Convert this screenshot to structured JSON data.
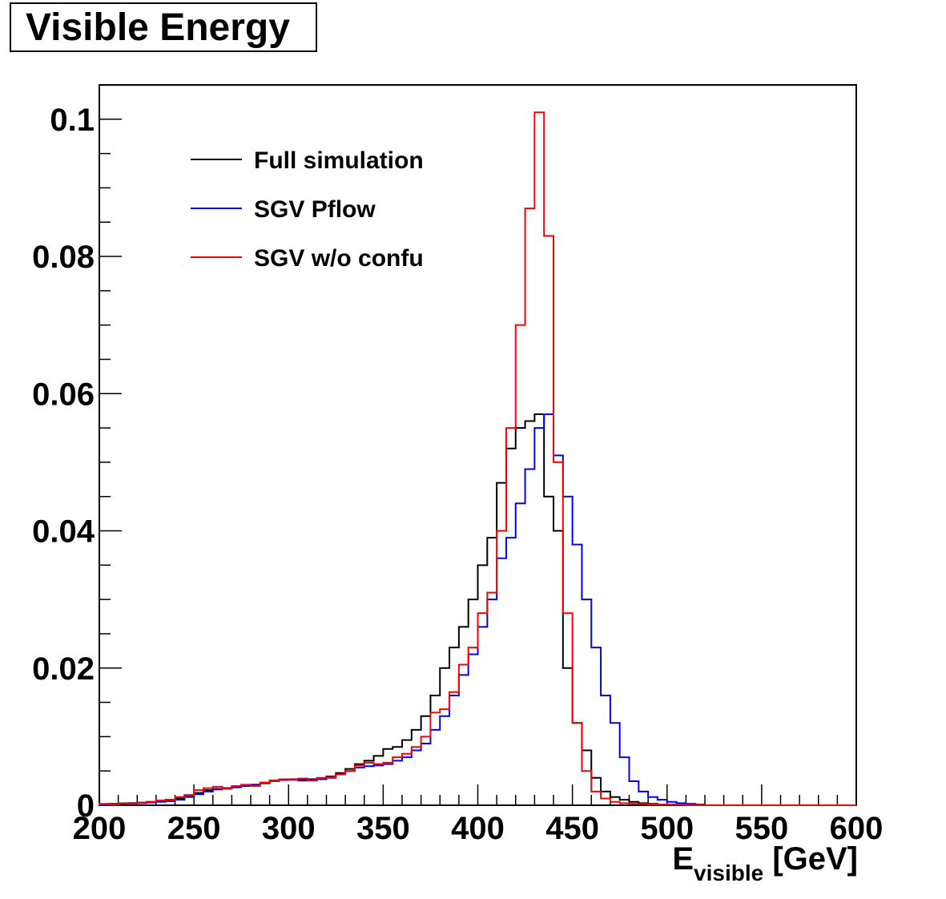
{
  "title": "Visible Energy",
  "chart_data": {
    "type": "line",
    "title": "Visible Energy",
    "xlabel": {
      "base": "E",
      "sub": "visible",
      "unit": "[GeV]"
    },
    "ylabel": "",
    "xlim": [
      200,
      600
    ],
    "ylim": [
      0,
      0.105
    ],
    "grid": false,
    "legend_position": "top-left",
    "x_ticks": [
      "200",
      "250",
      "300",
      "350",
      "400",
      "450",
      "500",
      "550",
      "600"
    ],
    "y_ticks": [
      "0",
      "0.02",
      "0.04",
      "0.06",
      "0.08",
      "0.1"
    ],
    "bin_edges_start": 200,
    "bin_width": 5,
    "series": [
      {
        "name": "Full simulation",
        "color": "#000000",
        "values": [
          0.0001,
          0.0002,
          0.0002,
          0.0003,
          0.0004,
          0.0005,
          0.0006,
          0.0008,
          0.001,
          0.0014,
          0.0018,
          0.0022,
          0.0024,
          0.0025,
          0.0027,
          0.0029,
          0.003,
          0.0032,
          0.0035,
          0.0037,
          0.0038,
          0.0037,
          0.0038,
          0.0039,
          0.0042,
          0.0047,
          0.0053,
          0.006,
          0.0065,
          0.0072,
          0.0082,
          0.0085,
          0.0095,
          0.011,
          0.013,
          0.016,
          0.02,
          0.023,
          0.026,
          0.03,
          0.035,
          0.039,
          0.047,
          0.052,
          0.055,
          0.056,
          0.057,
          0.045,
          0.04,
          0.02,
          0.012,
          0.008,
          0.004,
          0.002,
          0.0012,
          0.0008,
          0.0005,
          0.0003,
          0.0002,
          0.0001,
          0.0001,
          0,
          0,
          0,
          0,
          0,
          0,
          0,
          0,
          0,
          0,
          0,
          0,
          0,
          0,
          0,
          0,
          0,
          0,
          0
        ]
      },
      {
        "name": "SGV Pflow",
        "color": "#0000ff",
        "values": [
          0.0001,
          0.0001,
          0.0002,
          0.0003,
          0.0003,
          0.0004,
          0.0005,
          0.0006,
          0.0008,
          0.0012,
          0.0016,
          0.002,
          0.0023,
          0.0025,
          0.0026,
          0.0028,
          0.003,
          0.0033,
          0.0036,
          0.0037,
          0.0038,
          0.0036,
          0.0037,
          0.0038,
          0.004,
          0.0045,
          0.005,
          0.0055,
          0.0057,
          0.0058,
          0.006,
          0.0065,
          0.007,
          0.008,
          0.009,
          0.011,
          0.013,
          0.016,
          0.019,
          0.022,
          0.026,
          0.03,
          0.036,
          0.039,
          0.044,
          0.049,
          0.055,
          0.057,
          0.051,
          0.045,
          0.038,
          0.03,
          0.023,
          0.016,
          0.012,
          0.007,
          0.0035,
          0.002,
          0.0012,
          0.0008,
          0.0005,
          0.0003,
          0.0002,
          0.0001,
          0,
          0,
          0,
          0,
          0,
          0,
          0,
          0,
          0,
          0,
          0,
          0,
          0,
          0,
          0,
          0
        ]
      },
      {
        "name": "SGV w/o confu",
        "color": "#ff0000",
        "values": [
          0.0002,
          0.0001,
          0.0003,
          0.0002,
          0.0004,
          0.0005,
          0.0007,
          0.0008,
          0.0012,
          0.0015,
          0.0022,
          0.0025,
          0.0027,
          0.0024,
          0.0028,
          0.003,
          0.0028,
          0.0033,
          0.0035,
          0.0038,
          0.0037,
          0.0039,
          0.0036,
          0.004,
          0.0041,
          0.0045,
          0.005,
          0.0058,
          0.0062,
          0.006,
          0.0062,
          0.007,
          0.0075,
          0.0085,
          0.01,
          0.0135,
          0.014,
          0.0165,
          0.0205,
          0.023,
          0.028,
          0.031,
          0.04,
          0.055,
          0.07,
          0.087,
          0.101,
          0.083,
          0.05,
          0.028,
          0.012,
          0.005,
          0.002,
          0.001,
          0.0005,
          0.0003,
          0.0002,
          0.0002,
          0.0001,
          0.0001,
          0.0001,
          0.0001,
          0,
          0,
          0,
          0,
          0,
          0,
          0,
          0,
          0,
          0,
          0,
          0,
          0,
          0,
          0,
          0,
          0,
          0
        ]
      }
    ]
  }
}
